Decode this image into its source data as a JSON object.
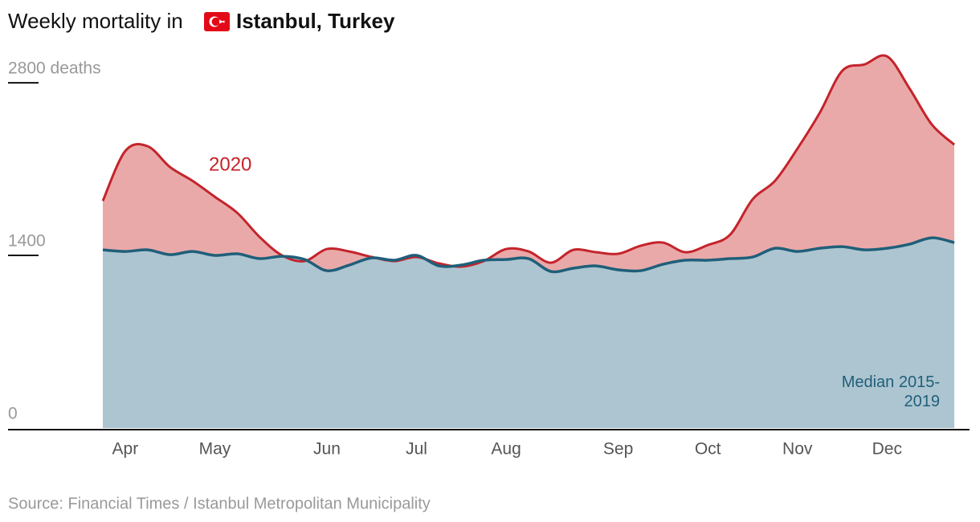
{
  "chart_data": {
    "type": "area-line",
    "title": "Weekly mortality in",
    "title_location": "Istanbul, Turkey",
    "source": "Source: Financial Times / Istanbul Metropolitan Municipality",
    "categories": [
      null,
      "Apr",
      null,
      null,
      null,
      "May",
      null,
      null,
      null,
      null,
      "Jun",
      null,
      null,
      null,
      "Jul",
      null,
      null,
      null,
      "Aug",
      null,
      null,
      null,
      null,
      "Sep",
      null,
      null,
      null,
      "Oct",
      null,
      null,
      null,
      "Nov",
      null,
      null,
      null,
      "Dec",
      null,
      null,
      null
    ],
    "series": [
      {
        "name": "2020",
        "color": "#c4242b",
        "fill": "#eaa9a9",
        "values": [
          1842,
          2246,
          2285,
          2116,
          2005,
          1875,
          1745,
          1549,
          1400,
          1354,
          1452,
          1432,
          1387,
          1354,
          1387,
          1335,
          1309,
          1354,
          1452,
          1432,
          1341,
          1445,
          1426,
          1413,
          1478,
          1504,
          1426,
          1484,
          1569,
          1855,
          2005,
          2266,
          2558,
          2897,
          2949,
          3014,
          2754,
          2461,
          2298
        ]
      },
      {
        "name": "Median 2015-2019",
        "color": "#1f5f7a",
        "fill": "#adc5d0",
        "values": [
          1445,
          1432,
          1445,
          1406,
          1432,
          1400,
          1413,
          1374,
          1393,
          1367,
          1276,
          1322,
          1380,
          1361,
          1400,
          1315,
          1322,
          1361,
          1367,
          1374,
          1270,
          1296,
          1315,
          1283,
          1276,
          1328,
          1361,
          1361,
          1374,
          1387,
          1458,
          1432,
          1458,
          1471,
          1445,
          1458,
          1491,
          1543,
          1504
        ]
      }
    ],
    "ylim": [
      0,
      3100
    ],
    "yticks": [
      0,
      1400,
      {
        "value": 2800,
        "label": "2800 deaths"
      }
    ]
  }
}
